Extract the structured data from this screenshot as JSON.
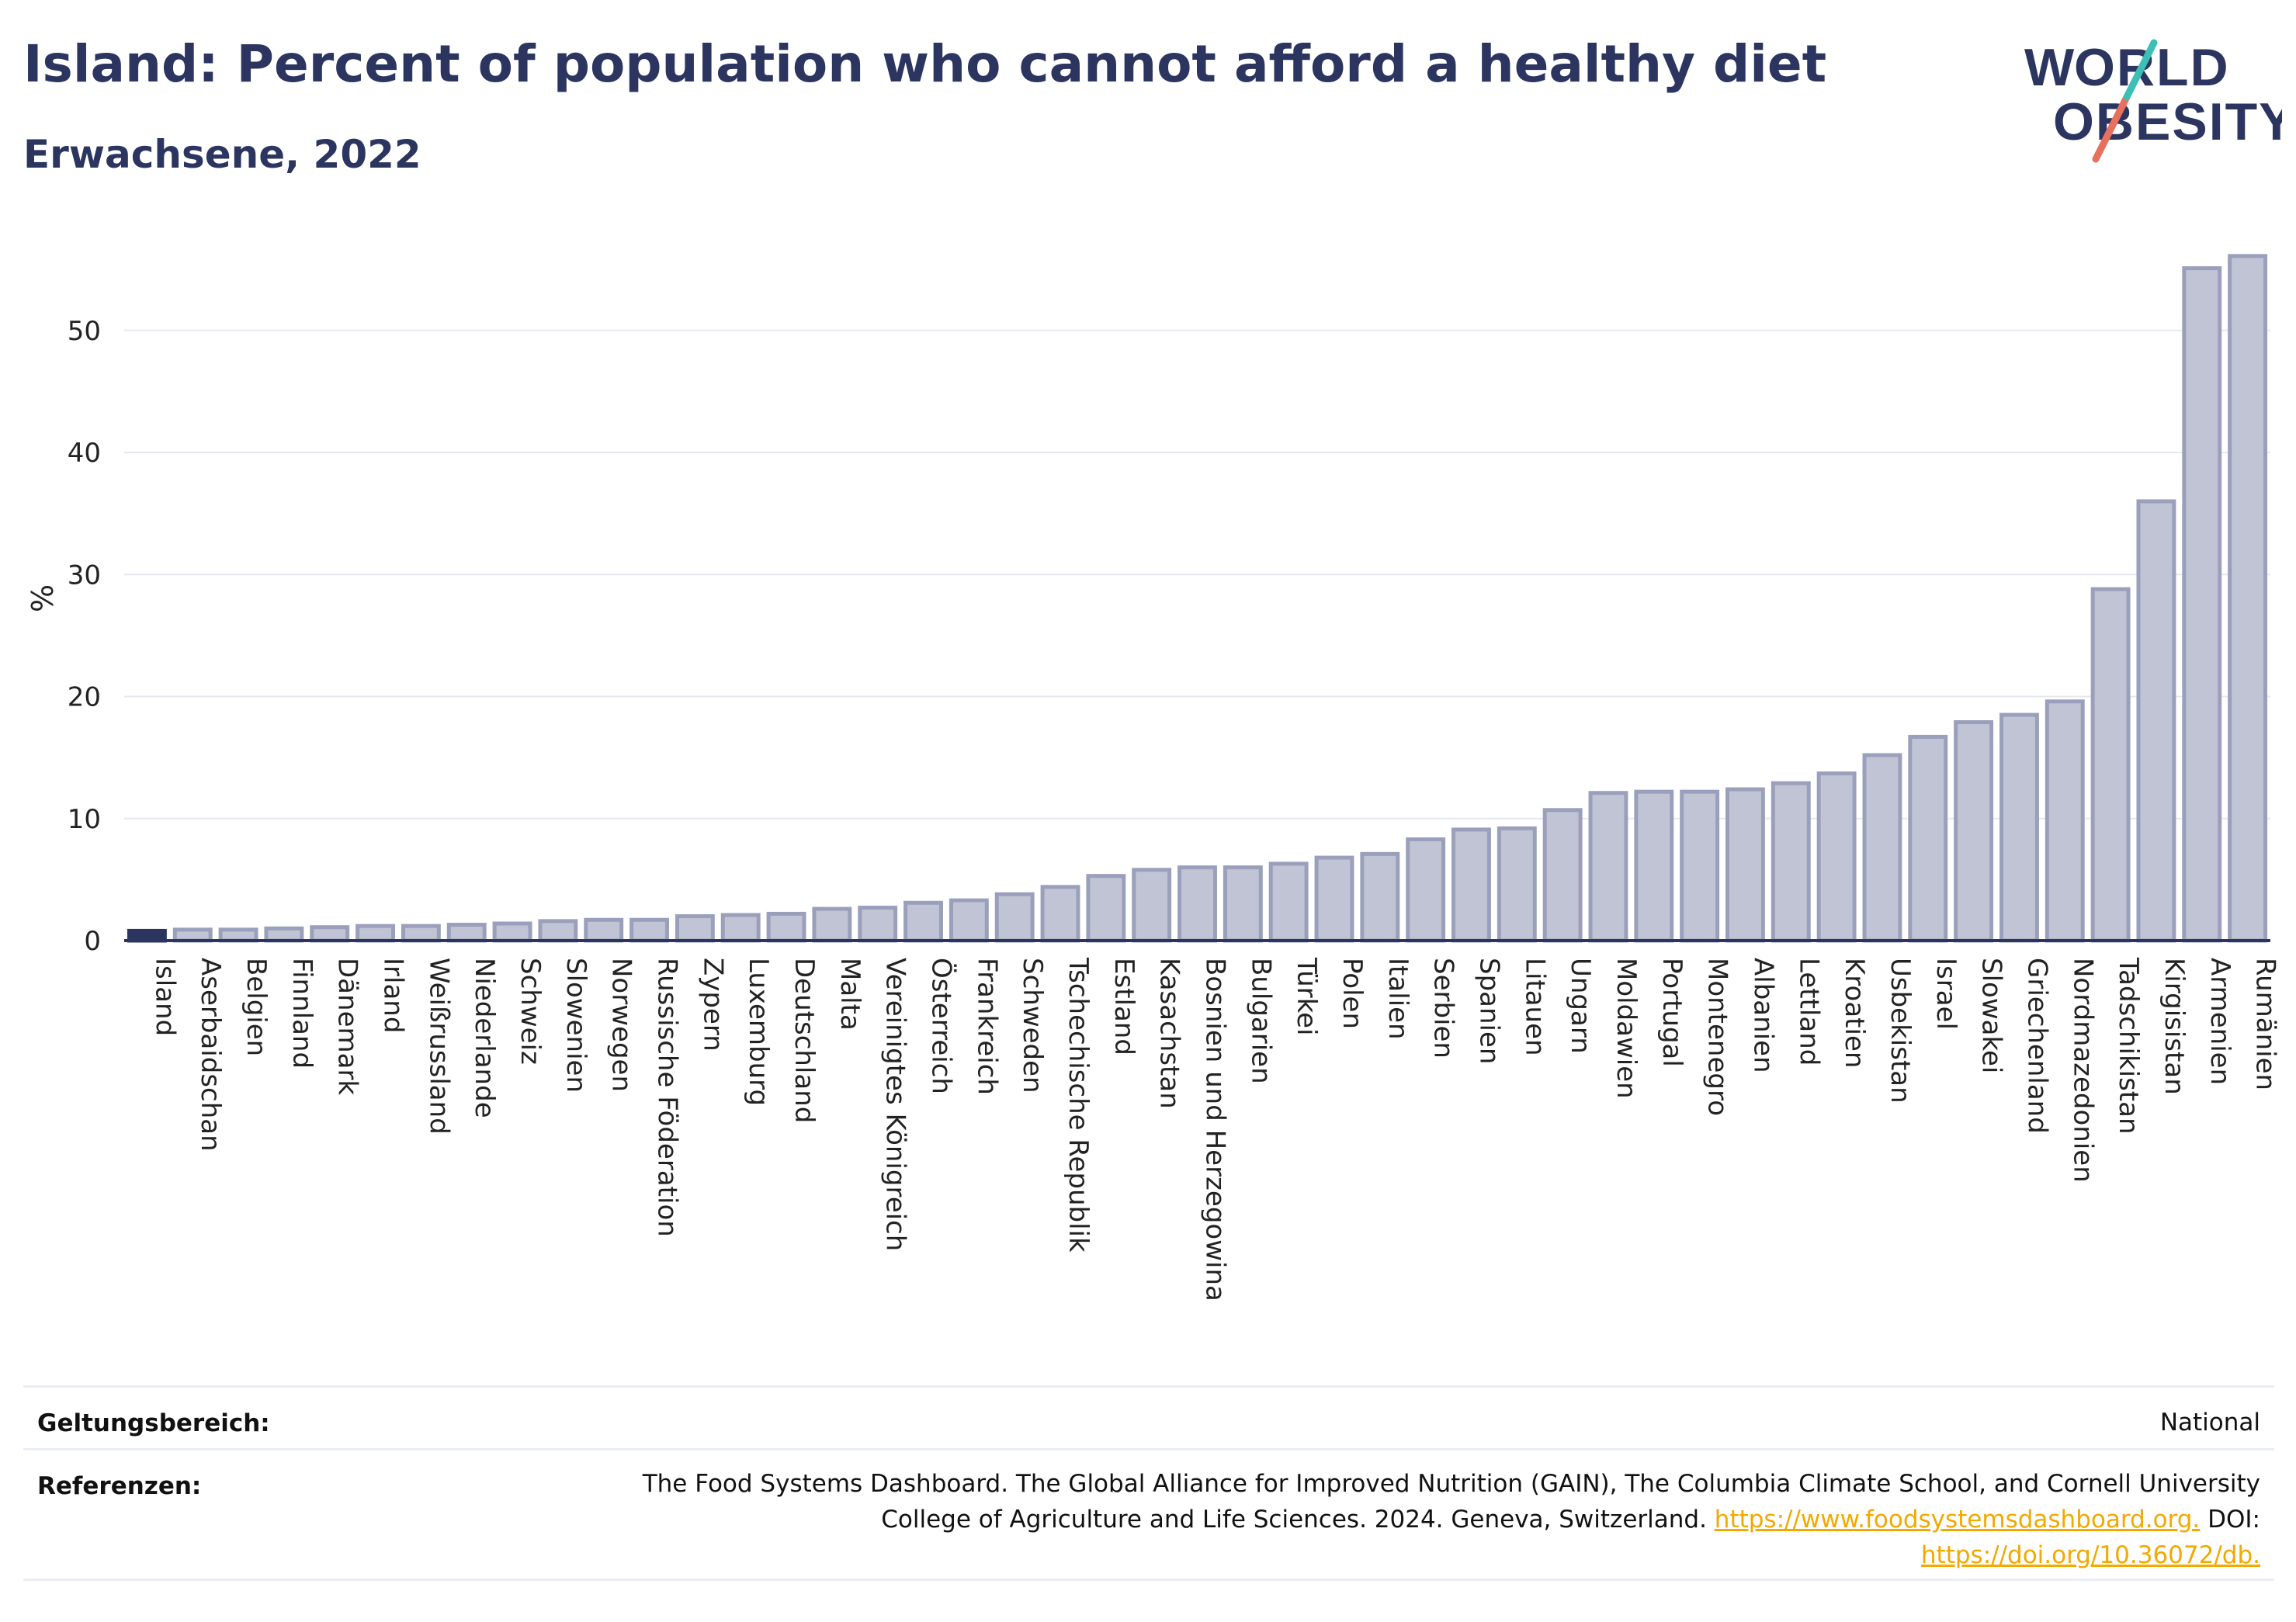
{
  "header": {
    "title": "Island: Percent of population who cannot afford a healthy diet",
    "subtitle": "Erwachsene, 2022"
  },
  "logo": {
    "line1": "WORLD",
    "line2": "OBESITY"
  },
  "chart_data": {
    "type": "bar",
    "ylabel": "%",
    "ylim": [
      0,
      58
    ],
    "yticks": [
      0,
      10,
      20,
      30,
      40,
      50
    ],
    "grid": true,
    "highlight": "Island",
    "colors": {
      "bar": "#c0c4d4",
      "bar_edge": "#9aa0bb",
      "highlight": "#2c3560",
      "axis": "#2c3560",
      "grid": "#e6e8ef"
    },
    "categories": [
      "Island",
      "Aserbaidschan",
      "Belgien",
      "Finnland",
      "Dänemark",
      "Irland",
      "Weißrussland",
      "Niederlande",
      "Schweiz",
      "Slowenien",
      "Norwegen",
      "Russische Föderation",
      "Zypern",
      "Luxemburg",
      "Deutschland",
      "Malta",
      "Vereinigtes Königreich",
      "Österreich",
      "Frankreich",
      "Schweden",
      "Tschechische Republik",
      "Estland",
      "Kasachstan",
      "Bosnien und Herzegowina",
      "Bulgarien",
      "Türkei",
      "Polen",
      "Italien",
      "Serbien",
      "Spanien",
      "Litauen",
      "Ungarn",
      "Moldawien",
      "Portugal",
      "Montenegro",
      "Albanien",
      "Lettland",
      "Kroatien",
      "Usbekistan",
      "Israel",
      "Slowakei",
      "Griechenland",
      "Nordmazedonien",
      "Tadschikistan",
      "Kirgisistan",
      "Armenien",
      "Rumänien"
    ],
    "values": [
      0.8,
      0.9,
      0.9,
      1.0,
      1.1,
      1.2,
      1.2,
      1.3,
      1.4,
      1.6,
      1.7,
      1.7,
      2.0,
      2.1,
      2.2,
      2.6,
      2.7,
      3.1,
      3.3,
      3.8,
      4.4,
      5.3,
      5.8,
      6.0,
      6.0,
      6.3,
      6.8,
      7.1,
      8.3,
      9.1,
      9.2,
      10.7,
      12.1,
      12.2,
      12.2,
      12.4,
      12.9,
      13.7,
      15.2,
      16.7,
      17.9,
      18.5,
      19.6,
      28.8,
      36.0,
      55.1,
      56.1
    ]
  },
  "footer": {
    "scope_label": "Geltungsbereich:",
    "scope_value": "National",
    "refs_label": "Referenzen:",
    "refs_line1": "The Food Systems Dashboard. The Global Alliance for Improved Nutrition (GAIN), The Columbia Climate School, and Cornell University",
    "refs_line2_text": "College of Agriculture and Life Sciences. 2024. Geneva, Switzerland.",
    "refs_link1": "https://www.foodsystemsdashboard.org.",
    "refs_doi": "DOI:",
    "refs_link2": "https://doi.org/10.36072/db."
  }
}
